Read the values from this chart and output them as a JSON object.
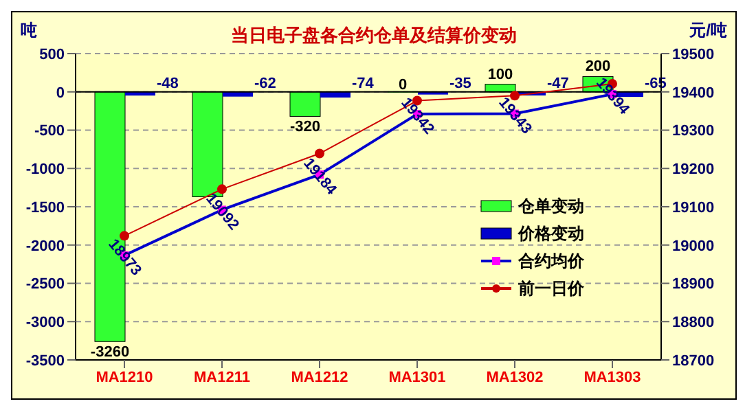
{
  "chart_data": {
    "type": "bar",
    "title": "当日电子盘各合约仓单及结算价变动",
    "ylabel": "吨",
    "y2label": "元/吨",
    "categories": [
      "MA1210",
      "MA1211",
      "MA1212",
      "MA1301",
      "MA1302",
      "MA1303"
    ],
    "series": [
      {
        "name": "仓单变动",
        "color": "#33ff33",
        "values": [
          -3260,
          -1370,
          -320,
          0,
          100,
          200
        ],
        "value_labels": [
          "-3260",
          null,
          "-320",
          "0",
          "100",
          "200"
        ]
      },
      {
        "name": "价格变动",
        "color": "#0000cc",
        "values": [
          -48,
          -62,
          -74,
          -35,
          -47,
          -65
        ],
        "value_labels": [
          "-48",
          "-62",
          "-74",
          "-35",
          "-47",
          "-65"
        ]
      },
      {
        "name": "合约均价",
        "type": "line",
        "axis": "y2",
        "color": "#0000cc",
        "marker": "square",
        "values": [
          18973,
          19092,
          19184,
          19342,
          19343,
          19394
        ],
        "value_labels": [
          "18973",
          "19092",
          "19184",
          "19342",
          "19343",
          "19394"
        ]
      },
      {
        "name": "前一日价",
        "type": "line",
        "axis": "y2",
        "color": "#cc0000",
        "marker": "circle",
        "values": [
          19024,
          19146,
          19239,
          19377,
          19390,
          19421
        ]
      }
    ],
    "ylim": [
      -3500,
      500
    ],
    "yticks": [
      -3500,
      -3000,
      -2500,
      -2000,
      -1500,
      -1000,
      -500,
      0,
      500
    ],
    "y2lim": [
      18700,
      19500
    ],
    "y2ticks": [
      18700,
      18800,
      18900,
      19000,
      19100,
      19200,
      19300,
      19400,
      19500
    ],
    "grid": "y",
    "legend": "bottom right"
  }
}
